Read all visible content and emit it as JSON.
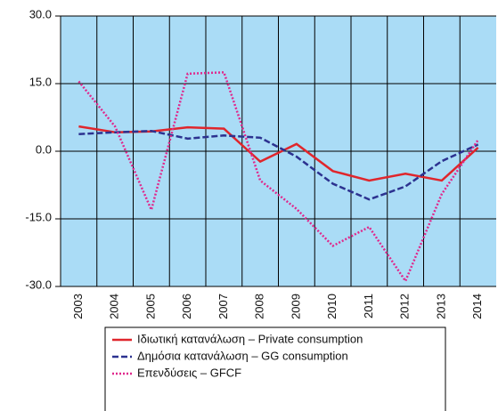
{
  "chart_data": {
    "type": "line",
    "categories": [
      "2003",
      "2004",
      "2005",
      "2006",
      "2007",
      "2008",
      "2009",
      "2010",
      "2011",
      "2012",
      "2013",
      "2014"
    ],
    "series": [
      {
        "name": "Ιδιωτική κατανάλωση – Private consumption",
        "color": "#e0262c",
        "style": "solid",
        "values": [
          5.5,
          4.2,
          4.4,
          5.3,
          5.0,
          -2.3,
          1.6,
          -4.4,
          -6.5,
          -5.0,
          -6.5,
          0.8
        ]
      },
      {
        "name": "Δημόσια κατανάλωση – GG consumption",
        "color": "#2c3290",
        "style": "dashed",
        "values": [
          3.8,
          4.2,
          4.5,
          2.8,
          3.5,
          3.0,
          -1.2,
          -7.2,
          -10.7,
          -7.8,
          -2.2,
          1.5
        ]
      },
      {
        "name": "Επενδύσεις – GFCF",
        "color": "#e0288c",
        "style": "dotted",
        "values": [
          15.5,
          5.5,
          -13.0,
          17.2,
          17.5,
          -6.5,
          -12.8,
          -21.0,
          -16.8,
          -28.8,
          -9.5,
          2.5
        ]
      }
    ],
    "ylim": [
      -30,
      30
    ],
    "yticks": [
      {
        "value": -30,
        "label": "-30.0"
      },
      {
        "value": -15,
        "label": "-15.0"
      },
      {
        "value": 0,
        "label": "0.0"
      },
      {
        "value": 15,
        "label": "15.0"
      },
      {
        "value": 30,
        "label": "30.0"
      }
    ],
    "grid": true,
    "background": "#aadcf6"
  }
}
